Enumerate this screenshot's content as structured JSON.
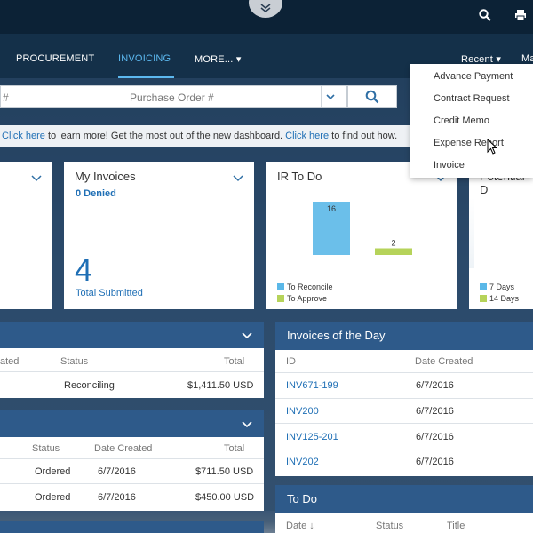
{
  "header": {
    "collapse_icon": "double-chevron-down-icon",
    "search_icon": "search-icon",
    "print_icon": "print-icon"
  },
  "nav": {
    "items": [
      "PROCUREMENT",
      "INVOICING",
      "MORE...",
      "Recent",
      "Ma"
    ],
    "active": "INVOICING",
    "more_caret": "▾",
    "recent_caret": "▾"
  },
  "search": {
    "field1_text": "#",
    "field2_placeholder": "Purchase Order #"
  },
  "banner": {
    "link1": "Click here",
    "text1": " to learn more! Get the most out of the new dashboard. ",
    "link2": "Click here",
    "text2": " to find out how."
  },
  "tiles": {
    "my_invoices": {
      "title": "My Invoices",
      "denied": "0 Denied",
      "big_number": "4",
      "big_label": "Total Submitted"
    },
    "ir_todo": {
      "title": "IR To Do",
      "bars": [
        {
          "label": "To Reconcile",
          "value": 16,
          "color": "#5bb8e8"
        },
        {
          "label": "To Approve",
          "value": 2,
          "color": "#b6d35a"
        }
      ],
      "bar_labels": [
        "16",
        "2"
      ],
      "legend": [
        "To Reconcile",
        "To Approve"
      ]
    },
    "potential": {
      "title": "Potential D",
      "legend": [
        "7 Days",
        "14 Days"
      ],
      "colors": [
        "#5bb8e8",
        "#b6d35a"
      ]
    }
  },
  "panel_left1": {
    "headers": [
      "ated",
      "Status",
      "Total"
    ],
    "rows": [
      {
        "status": "Reconciling",
        "total": "$1,411.50 USD"
      }
    ]
  },
  "panel_left2": {
    "headers": [
      "Status",
      "Date Created",
      "Total"
    ],
    "rows": [
      {
        "status": "Ordered",
        "date": "6/7/2016",
        "total": "$711.50 USD"
      },
      {
        "status": "Ordered",
        "date": "6/7/2016",
        "total": "$450.00 USD"
      }
    ]
  },
  "invoices_of_day": {
    "title": "Invoices of the Day",
    "headers": [
      "ID",
      "Date Created"
    ],
    "rows": [
      {
        "id": "INV671-199",
        "date": "6/7/2016"
      },
      {
        "id": "INV200",
        "date": "6/7/2016"
      },
      {
        "id": "INV125-201",
        "date": "6/7/2016"
      },
      {
        "id": "INV202",
        "date": "6/7/2016"
      }
    ]
  },
  "todo": {
    "title": "To Do",
    "headers": [
      "Date ↓",
      "Status",
      "Title"
    ]
  },
  "recent_menu": {
    "items": [
      "Advance Payment",
      "Contract Request",
      "Credit Memo",
      "Expense Report",
      "Invoice"
    ]
  },
  "colors": {
    "accent": "#5cb8ef",
    "panel_header": "#2e5a8a",
    "link": "#1f6fb5"
  }
}
